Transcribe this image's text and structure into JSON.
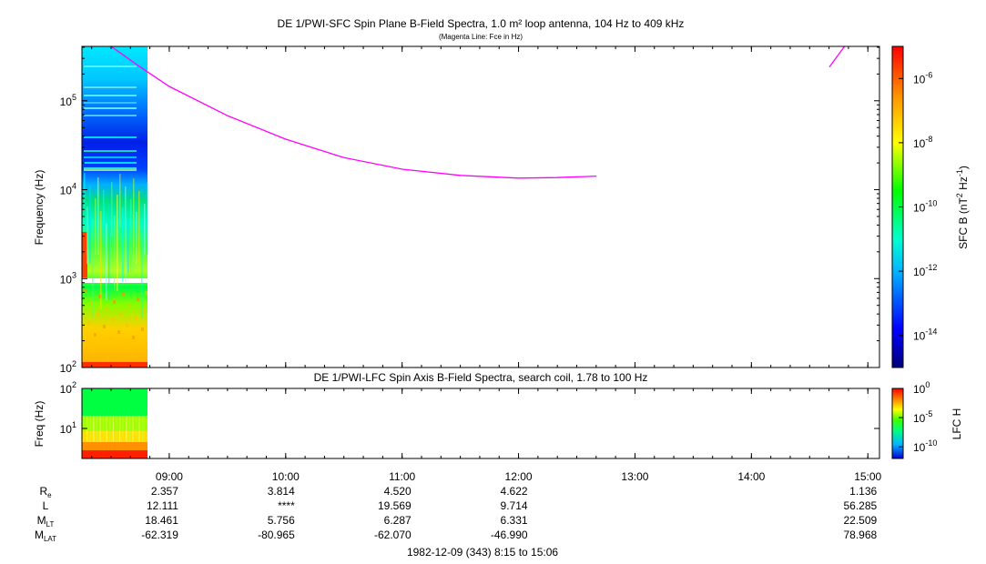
{
  "title": "DE 1/PWI-SFC  Spin Plane B-Field Spectra, 1.0 m² loop antenna, 104 Hz to 409 kHz",
  "subtitle": "(Magenta Line: Fce in Hz)",
  "colors": {
    "fce_line": "#ff00ff",
    "frame": "#000000"
  },
  "chart_data": [
    {
      "type": "heatmap",
      "panel": "upper",
      "title": "DE 1/PWI-SFC  Spin Plane B-Field Spectra, 1.0 m² loop antenna, 104 Hz to 409 kHz",
      "ylabel": "Frequency (Hz)",
      "yscale": "log",
      "ylim": [
        100,
        409000
      ],
      "y_ticks": [
        {
          "base": "10",
          "exp": "2",
          "value": 100
        },
        {
          "base": "10",
          "exp": "3",
          "value": 1000
        },
        {
          "base": "10",
          "exp": "4",
          "value": 10000
        },
        {
          "base": "10",
          "exp": "5",
          "value": 100000
        }
      ],
      "colorbar": {
        "label": "SFC B (nT",
        "label_exp1": "2",
        "label_mid": " Hz",
        "label_exp2": "-1",
        "label_end": ")",
        "scale": "log",
        "range": [
          1e-15,
          1e-05
        ],
        "ticks": [
          {
            "base": "10",
            "exp": "-6",
            "value": 1e-06
          },
          {
            "base": "10",
            "exp": "-8",
            "value": 1e-08
          },
          {
            "base": "10",
            "exp": "-10",
            "value": 1e-10
          },
          {
            "base": "10",
            "exp": "-12",
            "value": 1e-12
          },
          {
            "base": "10",
            "exp": "-14",
            "value": 1e-14
          }
        ]
      },
      "data_coverage_hours": [
        8.25,
        8.8
      ],
      "fce_line": {
        "name": "Fce in Hz",
        "segments": [
          [
            [
              8.5,
              409000
            ],
            [
              8.75,
              240000
            ],
            [
              9.0,
              145000
            ],
            [
              9.5,
              68000
            ],
            [
              10.0,
              37000
            ],
            [
              10.5,
              23000
            ],
            [
              11.0,
              17000
            ],
            [
              11.5,
              14500
            ],
            [
              12.0,
              13500
            ],
            [
              12.33,
              13700
            ],
            [
              12.67,
              14200
            ]
          ],
          [
            [
              14.67,
              240000
            ],
            [
              14.8,
              409000
            ]
          ]
        ]
      }
    },
    {
      "type": "heatmap",
      "panel": "lower",
      "title": "DE 1/PWI-LFC  Spin Axis B-Field Spectra, search coil, 1.78 to 100 Hz",
      "ylabel": "Freq (Hz)",
      "yscale": "log",
      "ylim": [
        1.78,
        100
      ],
      "y_ticks": [
        {
          "base": "10",
          "exp": "1",
          "value": 10
        },
        {
          "base": "10",
          "exp": "2",
          "value": 100
        }
      ],
      "colorbar": {
        "label": "LFC H",
        "scale": "log",
        "range": [
          1e-12,
          1
        ],
        "ticks": [
          {
            "base": "10",
            "exp": "0",
            "value": 1
          },
          {
            "base": "10",
            "exp": "-5",
            "value": 1e-05
          },
          {
            "base": "10",
            "exp": "-10",
            "value": 1e-10
          }
        ]
      },
      "data_coverage_hours": [
        8.25,
        8.8
      ]
    }
  ],
  "x_axis": {
    "range_hours": [
      8.25,
      15.1
    ],
    "ticks": [
      {
        "label": "09:00",
        "hour": 9
      },
      {
        "label": "10:00",
        "hour": 10
      },
      {
        "label": "11:00",
        "hour": 11
      },
      {
        "label": "12:00",
        "hour": 12
      },
      {
        "label": "13:00",
        "hour": 13
      },
      {
        "label": "14:00",
        "hour": 14
      },
      {
        "label": "15:00",
        "hour": 15
      }
    ]
  },
  "ephemeris": {
    "rows": [
      {
        "label": "R",
        "sub": "e",
        "values": [
          "2.357",
          "3.814",
          "4.520",
          "4.622",
          "1.136"
        ]
      },
      {
        "label": "L",
        "sub": "",
        "values": [
          "12.111",
          "****",
          "19.569",
          "9.714",
          "56.285"
        ]
      },
      {
        "label": "M",
        "sub": "LT",
        "values": [
          "18.461",
          "5.756",
          "6.287",
          "6.331",
          "22.509"
        ]
      },
      {
        "label": "M",
        "sub": "LAT",
        "values": [
          "-62.319",
          "-80.965",
          "-62.070",
          "-46.990",
          "78.968"
        ]
      }
    ],
    "column_hours": [
      9,
      10,
      11,
      12,
      15
    ]
  },
  "footer": "1982-12-09 (343) 8:15 to 15:06"
}
